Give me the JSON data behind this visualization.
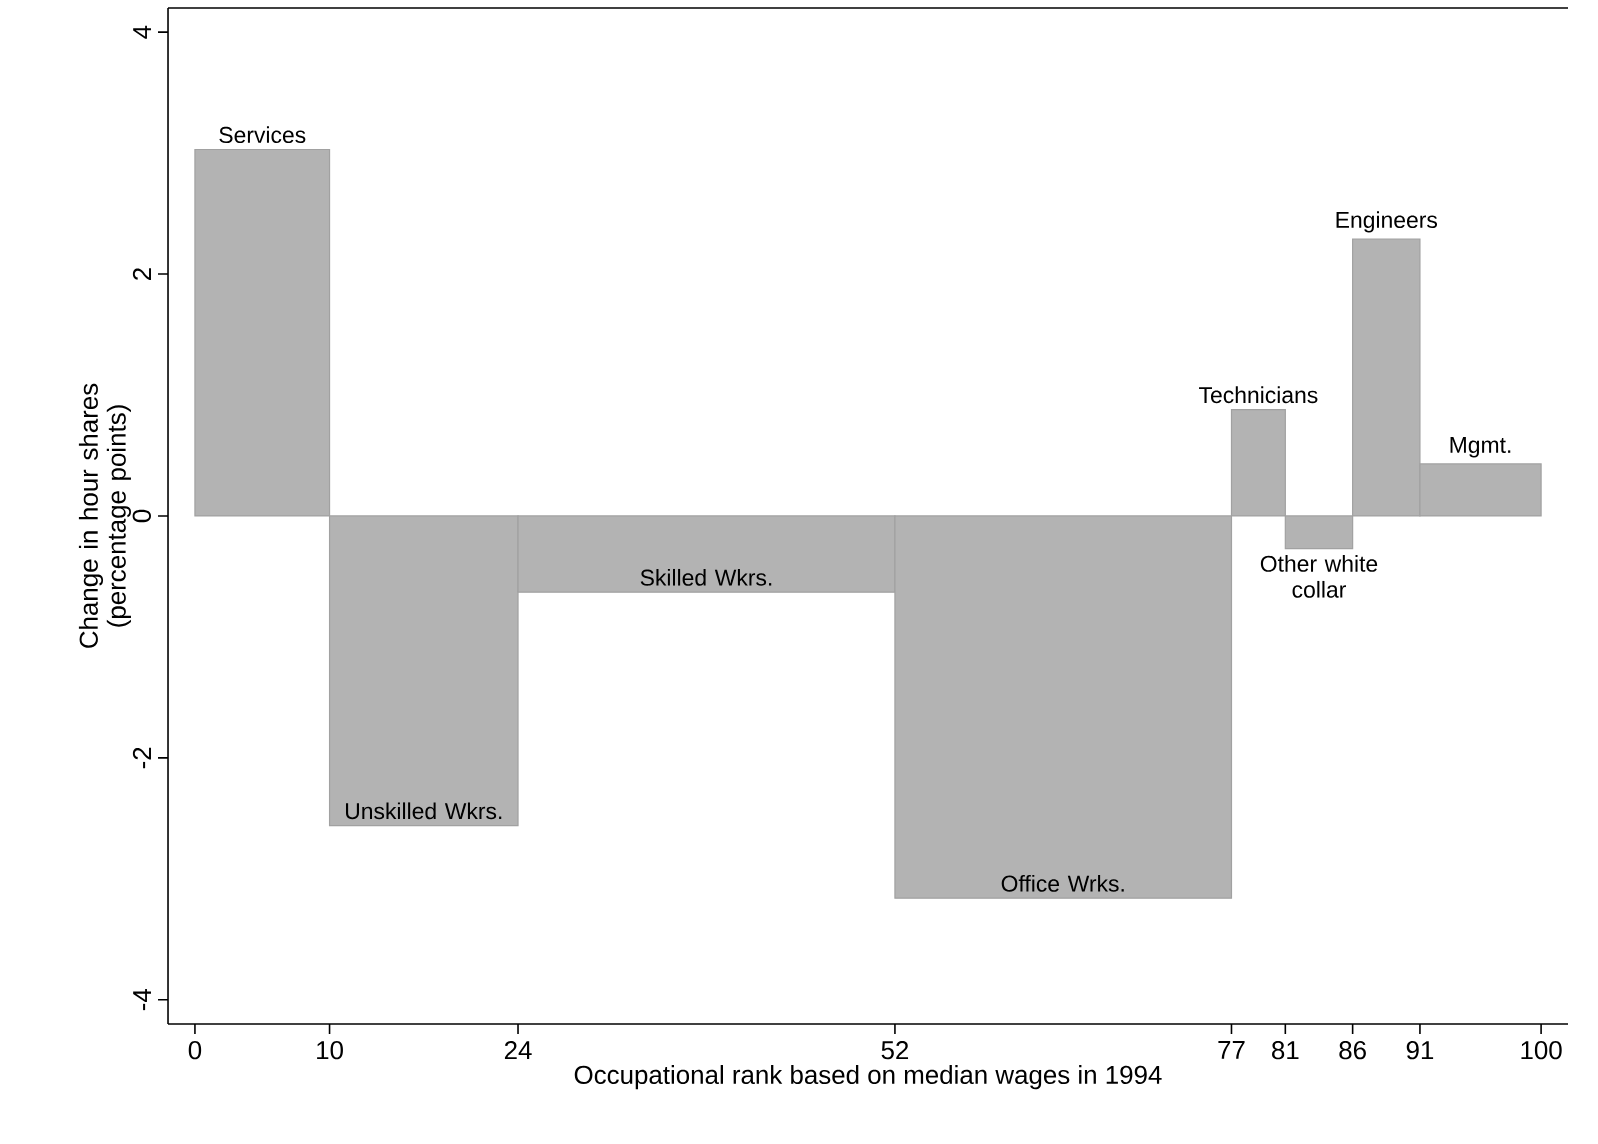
{
  "chart_data": {
    "type": "histogram",
    "xlabel": "Occupational rank based on median wages in 1994",
    "ylabel": "Change in hour shares (percentage points)",
    "bins": [
      0,
      10,
      24,
      52,
      77,
      81,
      86,
      91,
      100
    ],
    "values": [
      3.03,
      -2.56,
      -0.63,
      -3.16,
      0.88,
      -0.27,
      2.29,
      0.43
    ],
    "color": "#b3b3b3",
    "xlim": [
      -2,
      102
    ],
    "ylim": [
      -4.2,
      4.2
    ],
    "xticks": [
      0,
      10,
      24,
      52,
      77,
      81,
      86,
      91,
      100
    ],
    "yticks": [
      -4,
      -2,
      0,
      2,
      4
    ],
    "grid": false,
    "annotations": [
      "Services",
      "Unskilled Wkrs.",
      "Skilled Wkrs.",
      "Office Wrks.",
      "Technicians",
      "Other white collar",
      "Engineers",
      "Mgmt."
    ]
  }
}
